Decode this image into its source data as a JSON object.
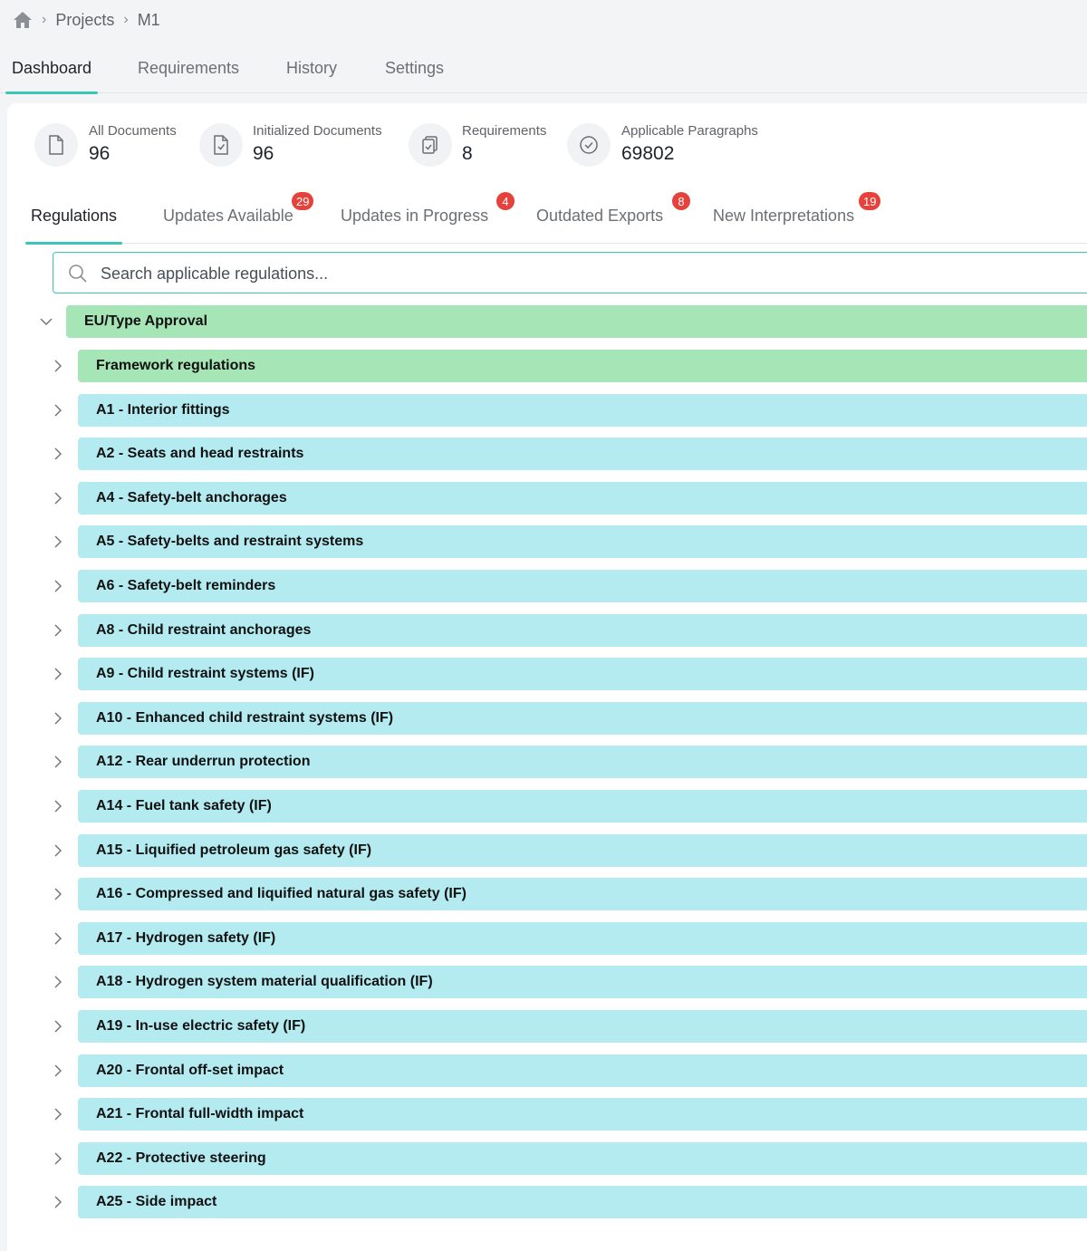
{
  "breadcrumb": {
    "items": [
      "Projects",
      "M1"
    ],
    "separator": "›"
  },
  "tabs": [
    {
      "label": "Dashboard",
      "active": true
    },
    {
      "label": "Requirements",
      "active": false
    },
    {
      "label": "History",
      "active": false
    },
    {
      "label": "Settings",
      "active": false
    }
  ],
  "stats": [
    {
      "label": "All Documents",
      "value": "96",
      "icon": "document-icon"
    },
    {
      "label": "Initialized Documents",
      "value": "96",
      "icon": "document-check-icon"
    },
    {
      "label": "Requirements",
      "value": "8",
      "icon": "clipboard-icon"
    },
    {
      "label": "Applicable Paragraphs",
      "value": "69802",
      "icon": "check-circle-icon"
    }
  ],
  "subtabs": [
    {
      "label": "Regulations",
      "badge": "",
      "active": true
    },
    {
      "label": "Updates Available",
      "badge": "29",
      "active": false
    },
    {
      "label": "Updates in Progress",
      "badge": "4",
      "active": false
    },
    {
      "label": "Outdated Exports",
      "badge": "8",
      "active": false
    },
    {
      "label": "New Interpretations",
      "badge": "19",
      "active": false
    }
  ],
  "search": {
    "placeholder": "Search applicable regulations...",
    "value": ""
  },
  "tree": {
    "root": {
      "label": "EU/Type Approval",
      "expanded": true
    },
    "children": [
      {
        "label": "Framework regulations",
        "color": "green"
      },
      {
        "label": "A1 - Interior fittings",
        "color": "cyan"
      },
      {
        "label": "A2 - Seats and head restraints",
        "color": "cyan"
      },
      {
        "label": "A4 - Safety-belt anchorages",
        "color": "cyan"
      },
      {
        "label": "A5 - Safety-belts and restraint systems",
        "color": "cyan"
      },
      {
        "label": "A6 - Safety-belt reminders",
        "color": "cyan"
      },
      {
        "label": "A8 - Child restraint anchorages",
        "color": "cyan"
      },
      {
        "label": "A9 - Child restraint systems (IF)",
        "color": "cyan"
      },
      {
        "label": "A10 - Enhanced child restraint systems (IF)",
        "color": "cyan"
      },
      {
        "label": "A12 - Rear underrun protection",
        "color": "cyan"
      },
      {
        "label": "A14 - Fuel tank safety (IF)",
        "color": "cyan"
      },
      {
        "label": "A15 - Liquified petroleum gas safety (IF)",
        "color": "cyan"
      },
      {
        "label": "A16 - Compressed and liquified natural gas safety (IF)",
        "color": "cyan"
      },
      {
        "label": "A17 - Hydrogen safety (IF)",
        "color": "cyan"
      },
      {
        "label": "A18 - Hydrogen system material qualification (IF)",
        "color": "cyan"
      },
      {
        "label": "A19 - In-use electric safety (IF)",
        "color": "cyan"
      },
      {
        "label": "A20 - Frontal off-set impact",
        "color": "cyan"
      },
      {
        "label": "A21 - Frontal full-width impact",
        "color": "cyan"
      },
      {
        "label": "A22 - Protective steering",
        "color": "cyan"
      },
      {
        "label": "A25 - Side impact",
        "color": "cyan"
      }
    ]
  },
  "colors": {
    "accent": "#3bc6b6",
    "badge": "#e5423c",
    "group_green": "#a5e5b6",
    "item_cyan": "#b3ebf0"
  }
}
